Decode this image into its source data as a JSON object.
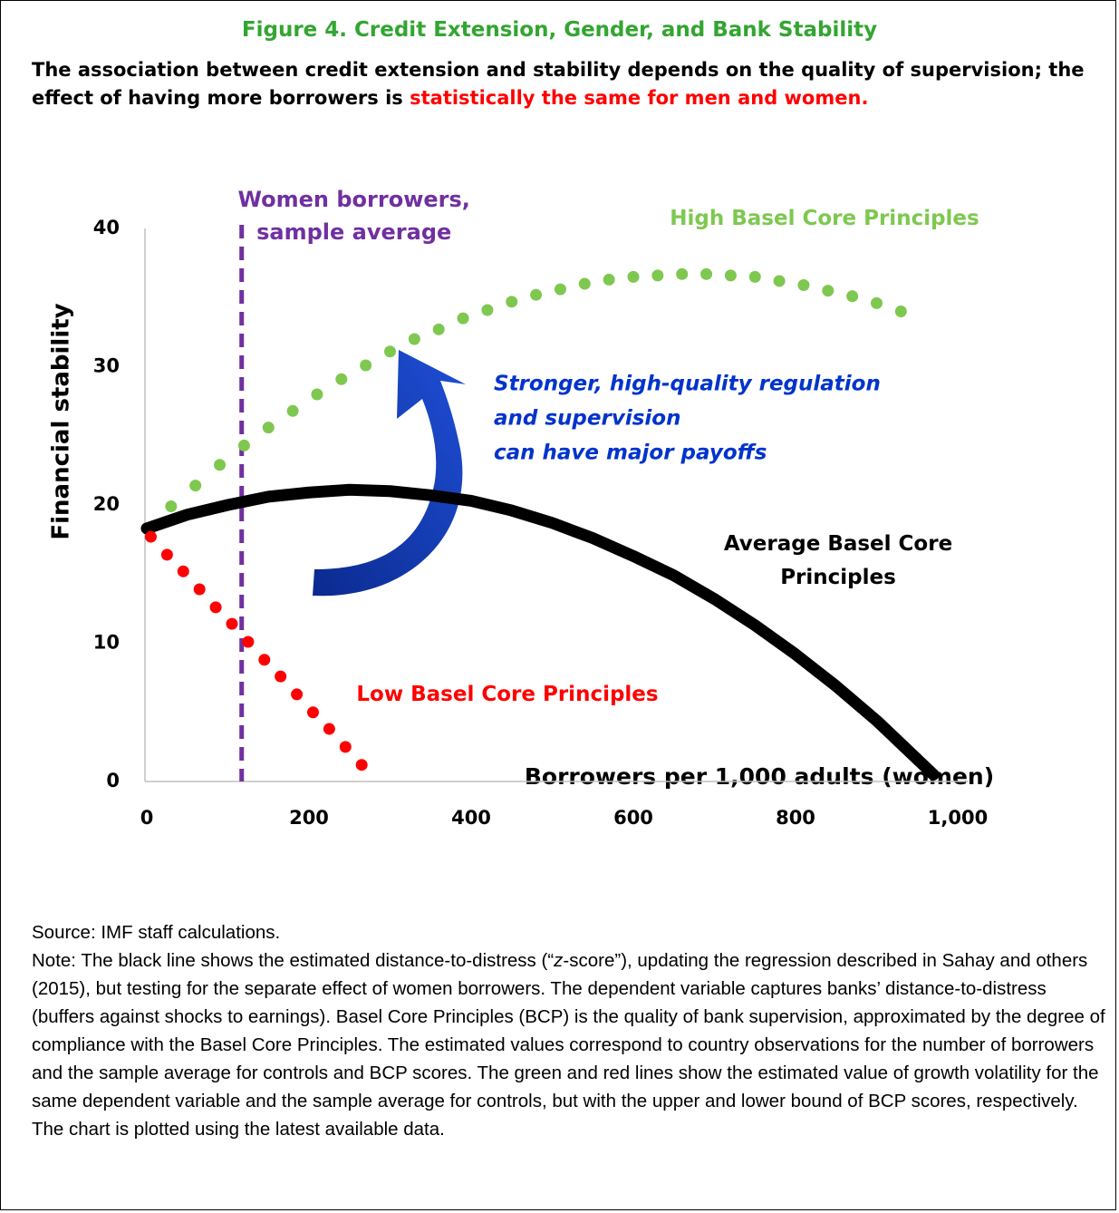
{
  "chart_data": {
    "type": "line",
    "title": "Figure 4. Credit Extension, Gender, and Bank Stability",
    "subtitle": [
      "The association between credit extension and stability depends on the quality of supervision; the effect of having more borrowers is ",
      "statistically the same for men and women."
    ],
    "xlabel": "Borrowers per 1,000 adults (women)",
    "ylabel": "Financial stability",
    "xlim": [
      0,
      1000
    ],
    "ylim": [
      0,
      40
    ],
    "xticks": [
      0,
      200,
      400,
      600,
      800,
      {
        "value": 1000,
        "label": "1,000"
      }
    ],
    "yticks": [
      0,
      10,
      20,
      30,
      40
    ],
    "series": [
      {
        "name": "High Basel Core Principles",
        "color": "#7ec850",
        "style": "dotted",
        "x": [
          0,
          30,
          60,
          90,
          120,
          150,
          180,
          210,
          240,
          270,
          300,
          330,
          360,
          390,
          420,
          450,
          480,
          510,
          540,
          570,
          600,
          630,
          660,
          690,
          720,
          750,
          780,
          810,
          840,
          870,
          900,
          930
        ],
        "values": [
          18.3,
          19.9,
          21.4,
          22.9,
          24.3,
          25.6,
          26.8,
          28.0,
          29.1,
          30.1,
          31.1,
          32.0,
          32.7,
          33.5,
          34.1,
          34.7,
          35.2,
          35.6,
          36.0,
          36.3,
          36.5,
          36.6,
          36.7,
          36.7,
          36.6,
          36.5,
          36.2,
          35.9,
          35.5,
          35.1,
          34.6,
          34.0
        ]
      },
      {
        "name": "Average Basel Core Principles",
        "color": "#000000",
        "style": "solid",
        "x": [
          0,
          50,
          100,
          150,
          200,
          250,
          300,
          350,
          400,
          450,
          500,
          550,
          600,
          650,
          700,
          750,
          800,
          850,
          900,
          970
        ],
        "values": [
          18.3,
          19.3,
          20.0,
          20.6,
          20.9,
          21.1,
          21.0,
          20.7,
          20.3,
          19.6,
          18.7,
          17.6,
          16.3,
          14.9,
          13.2,
          11.3,
          9.2,
          6.9,
          4.4,
          0.5
        ]
      },
      {
        "name": "Low Basel Core Principles",
        "color": "#ff0000",
        "style": "dotted",
        "x": [
          5,
          25,
          45,
          65,
          85,
          105,
          125,
          145,
          165,
          185,
          205,
          225,
          245,
          265
        ],
        "values": [
          17.7,
          16.4,
          15.2,
          13.9,
          12.6,
          11.4,
          10.1,
          8.8,
          7.6,
          6.3,
          5.0,
          3.8,
          2.5,
          1.2
        ]
      }
    ],
    "reference_lines": [
      {
        "x": 117,
        "color": "#7030a0",
        "label": [
          "Women borrowers,",
          "sample average"
        ]
      }
    ],
    "annotation": [
      "Stronger, high-quality regulation",
      "and supervision",
      "can have major payoffs"
    ],
    "source": "Source: IMF staff calculations.",
    "note": [
      "Note: The black line shows the estimated distance-to-distress (“",
      "z",
      "-score”), updating the regression described in Sahay and others (2015), but testing for the separate effect of women borrowers. The dependent variable captures banks’ distance-to-distress (buffers against shocks to earnings). Basel Core Principles (BCP) is the quality of bank supervision, approximated by the degree of compliance with the Basel Core Principles. The estimated values correspond to country observations for the number of borrowers and the sample average for controls and BCP scores. The green and red lines show the estimated value of growth volatility for the same dependent variable and the sample average for controls, but with the upper and lower bound of BCP scores, respectively. The chart is plotted using the latest available data."
    ]
  }
}
